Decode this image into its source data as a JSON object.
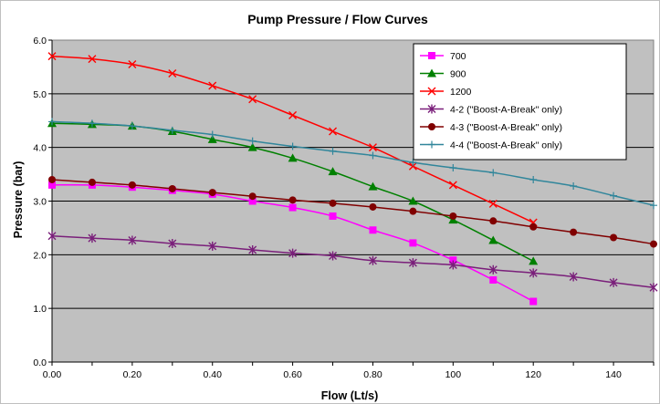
{
  "chart_data": {
    "type": "line",
    "title": "Pump Pressure / Flow Curves",
    "xlabel": "Flow (Lt/s)",
    "ylabel": "Pressure (bar)",
    "xlim": [
      0,
      150
    ],
    "ylim": [
      0,
      6
    ],
    "x_tick_labels": [
      "0.00",
      "0.20",
      "0.40",
      "0.60",
      "0.80",
      "100",
      "120",
      "140"
    ],
    "y_tick_labels": [
      "0.0",
      "1.0",
      "2.0",
      "3.0",
      "4.0",
      "5.0",
      "6.0"
    ],
    "grid": "horizontal",
    "plot_background": "#c0c0c0",
    "legend_position": "top-right",
    "series": [
      {
        "name": "700",
        "color": "#ff00ff",
        "marker": "square",
        "x": [
          0,
          10,
          20,
          30,
          40,
          50,
          60,
          70,
          80,
          90,
          100,
          110,
          120
        ],
        "y": [
          3.3,
          3.3,
          3.26,
          3.2,
          3.13,
          3.0,
          2.88,
          2.72,
          2.46,
          2.22,
          1.9,
          1.53,
          1.13
        ]
      },
      {
        "name": "900",
        "color": "#008000",
        "marker": "triangle",
        "x": [
          0,
          10,
          20,
          30,
          40,
          50,
          60,
          70,
          80,
          90,
          100,
          110,
          120
        ],
        "y": [
          4.45,
          4.43,
          4.4,
          4.3,
          4.15,
          4.0,
          3.8,
          3.55,
          3.27,
          3.0,
          2.65,
          2.27,
          1.88
        ]
      },
      {
        "name": "1200",
        "color": "#ff0000",
        "marker": "x",
        "x": [
          0,
          10,
          20,
          30,
          40,
          50,
          60,
          70,
          80,
          90,
          100,
          110,
          120
        ],
        "y": [
          5.7,
          5.65,
          5.55,
          5.38,
          5.15,
          4.9,
          4.6,
          4.3,
          4.0,
          3.65,
          3.3,
          2.95,
          2.6
        ]
      },
      {
        "name": "4-2 (\"Boost-A-Break\" only)",
        "color": "#7a1f7a",
        "marker": "star",
        "x": [
          0,
          10,
          20,
          30,
          40,
          50,
          60,
          70,
          80,
          90,
          100,
          110,
          120,
          130,
          140,
          150
        ],
        "y": [
          2.35,
          2.31,
          2.27,
          2.21,
          2.16,
          2.09,
          2.03,
          1.98,
          1.89,
          1.85,
          1.81,
          1.72,
          1.66,
          1.59,
          1.48,
          1.39
        ]
      },
      {
        "name": "4-3 (\"Boost-A-Break\" only)",
        "color": "#800000",
        "marker": "circle",
        "x": [
          0,
          10,
          20,
          30,
          40,
          50,
          60,
          70,
          80,
          90,
          100,
          110,
          120,
          130,
          140,
          150
        ],
        "y": [
          3.4,
          3.35,
          3.3,
          3.23,
          3.16,
          3.09,
          3.02,
          2.96,
          2.89,
          2.81,
          2.72,
          2.63,
          2.52,
          2.42,
          2.32,
          2.2
        ]
      },
      {
        "name": "4-4 (\"Boost-A-Break\" only)",
        "color": "#31869b",
        "marker": "plus",
        "x": [
          0,
          10,
          20,
          30,
          40,
          50,
          60,
          70,
          80,
          90,
          100,
          110,
          120,
          130,
          140,
          150
        ],
        "y": [
          4.48,
          4.45,
          4.4,
          4.32,
          4.24,
          4.12,
          4.02,
          3.93,
          3.85,
          3.72,
          3.62,
          3.53,
          3.4,
          3.28,
          3.1,
          2.92
        ]
      }
    ]
  }
}
